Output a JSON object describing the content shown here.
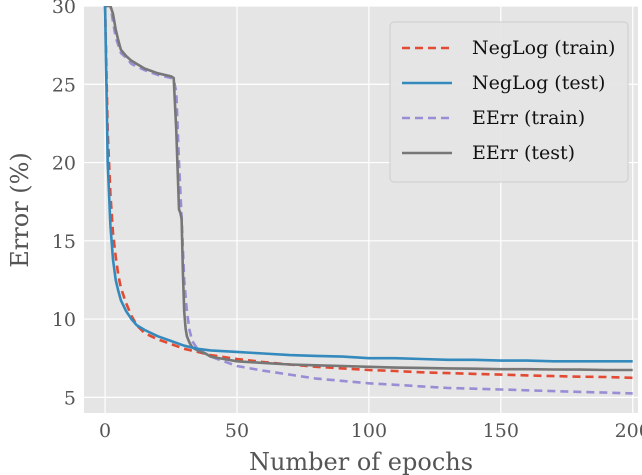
{
  "chart_data": {
    "type": "line",
    "xlabel": "Number of epochs",
    "ylabel": "Error (%)",
    "xlim": [
      -8,
      202
    ],
    "ylim": [
      4,
      30
    ],
    "x_ticks": [
      0,
      50,
      100,
      150,
      200
    ],
    "y_ticks": [
      5,
      10,
      15,
      20,
      25,
      30
    ],
    "x_tick_labels": [
      "0",
      "50",
      "100",
      "150",
      "200"
    ],
    "y_tick_labels": [
      "5",
      "10",
      "15",
      "20",
      "25",
      "30"
    ],
    "grid": true,
    "legend_position": "top-right",
    "series": [
      {
        "name": "NegLog (train)",
        "color": "#e24a33",
        "style": "dashed",
        "x": [
          0,
          1,
          2,
          3,
          4,
          5,
          6,
          8,
          10,
          12,
          15,
          20,
          25,
          30,
          35,
          40,
          50,
          60,
          70,
          80,
          90,
          100,
          110,
          120,
          130,
          140,
          150,
          160,
          170,
          180,
          190,
          200
        ],
        "y": [
          30,
          22,
          18,
          15.5,
          14,
          12.8,
          12,
          11,
          10.2,
          9.6,
          9.1,
          8.7,
          8.4,
          8.1,
          7.9,
          7.7,
          7.45,
          7.25,
          7.1,
          6.95,
          6.85,
          6.75,
          6.68,
          6.6,
          6.55,
          6.5,
          6.45,
          6.4,
          6.36,
          6.32,
          6.3,
          6.25
        ]
      },
      {
        "name": "NegLog (test)",
        "color": "#348abd",
        "style": "solid",
        "x": [
          0,
          1,
          2,
          3,
          4,
          5,
          6,
          8,
          10,
          12,
          15,
          20,
          25,
          30,
          35,
          40,
          50,
          60,
          70,
          80,
          90,
          100,
          110,
          120,
          130,
          140,
          150,
          160,
          170,
          180,
          190,
          200
        ],
        "y": [
          30,
          20,
          16,
          13.8,
          12.5,
          11.8,
          11.2,
          10.5,
          10,
          9.6,
          9.3,
          8.9,
          8.6,
          8.3,
          8.1,
          8.0,
          7.9,
          7.8,
          7.7,
          7.65,
          7.6,
          7.5,
          7.5,
          7.45,
          7.4,
          7.4,
          7.35,
          7.35,
          7.3,
          7.3,
          7.3,
          7.3
        ]
      },
      {
        "name": "EErr (train)",
        "color": "#988ed5",
        "style": "dashed",
        "x": [
          0,
          2,
          3,
          4,
          5,
          6,
          8,
          10,
          15,
          20,
          25,
          26,
          27,
          28,
          29,
          30,
          31,
          32,
          33,
          35,
          38,
          40,
          45,
          50,
          60,
          70,
          80,
          90,
          100,
          110,
          120,
          130,
          140,
          150,
          160,
          170,
          180,
          190,
          200
        ],
        "y": [
          30,
          30,
          29,
          28,
          27.5,
          27,
          26.7,
          26.3,
          25.9,
          25.6,
          25.4,
          25.3,
          24.5,
          20,
          16.5,
          12.5,
          10.5,
          9.3,
          8.6,
          8.1,
          7.8,
          7.6,
          7.3,
          7.0,
          6.7,
          6.45,
          6.2,
          6.05,
          5.9,
          5.8,
          5.7,
          5.6,
          5.55,
          5.5,
          5.45,
          5.4,
          5.35,
          5.3,
          5.25
        ]
      },
      {
        "name": "EErr (test)",
        "color": "#777777",
        "style": "solid",
        "x": [
          0,
          1,
          2,
          3,
          4,
          5,
          6,
          8,
          10,
          15,
          20,
          25,
          26,
          27,
          28,
          28.5,
          29,
          29.5,
          30,
          30.5,
          31,
          32,
          33,
          35,
          38,
          40,
          45,
          50,
          60,
          70,
          80,
          90,
          100,
          110,
          120,
          130,
          140,
          150,
          160,
          170,
          180,
          190,
          200
        ],
        "y": [
          30,
          30,
          30,
          29.5,
          28.5,
          27.8,
          27.2,
          26.8,
          26.5,
          26,
          25.7,
          25.5,
          25.4,
          22,
          17,
          16.8,
          16.4,
          13,
          10.5,
          9.4,
          8.9,
          8.5,
          8.2,
          8.0,
          7.8,
          7.6,
          7.45,
          7.3,
          7.2,
          7.1,
          7.05,
          7.0,
          6.95,
          6.9,
          6.88,
          6.85,
          6.83,
          6.8,
          6.8,
          6.78,
          6.77,
          6.75,
          6.75
        ]
      }
    ]
  }
}
